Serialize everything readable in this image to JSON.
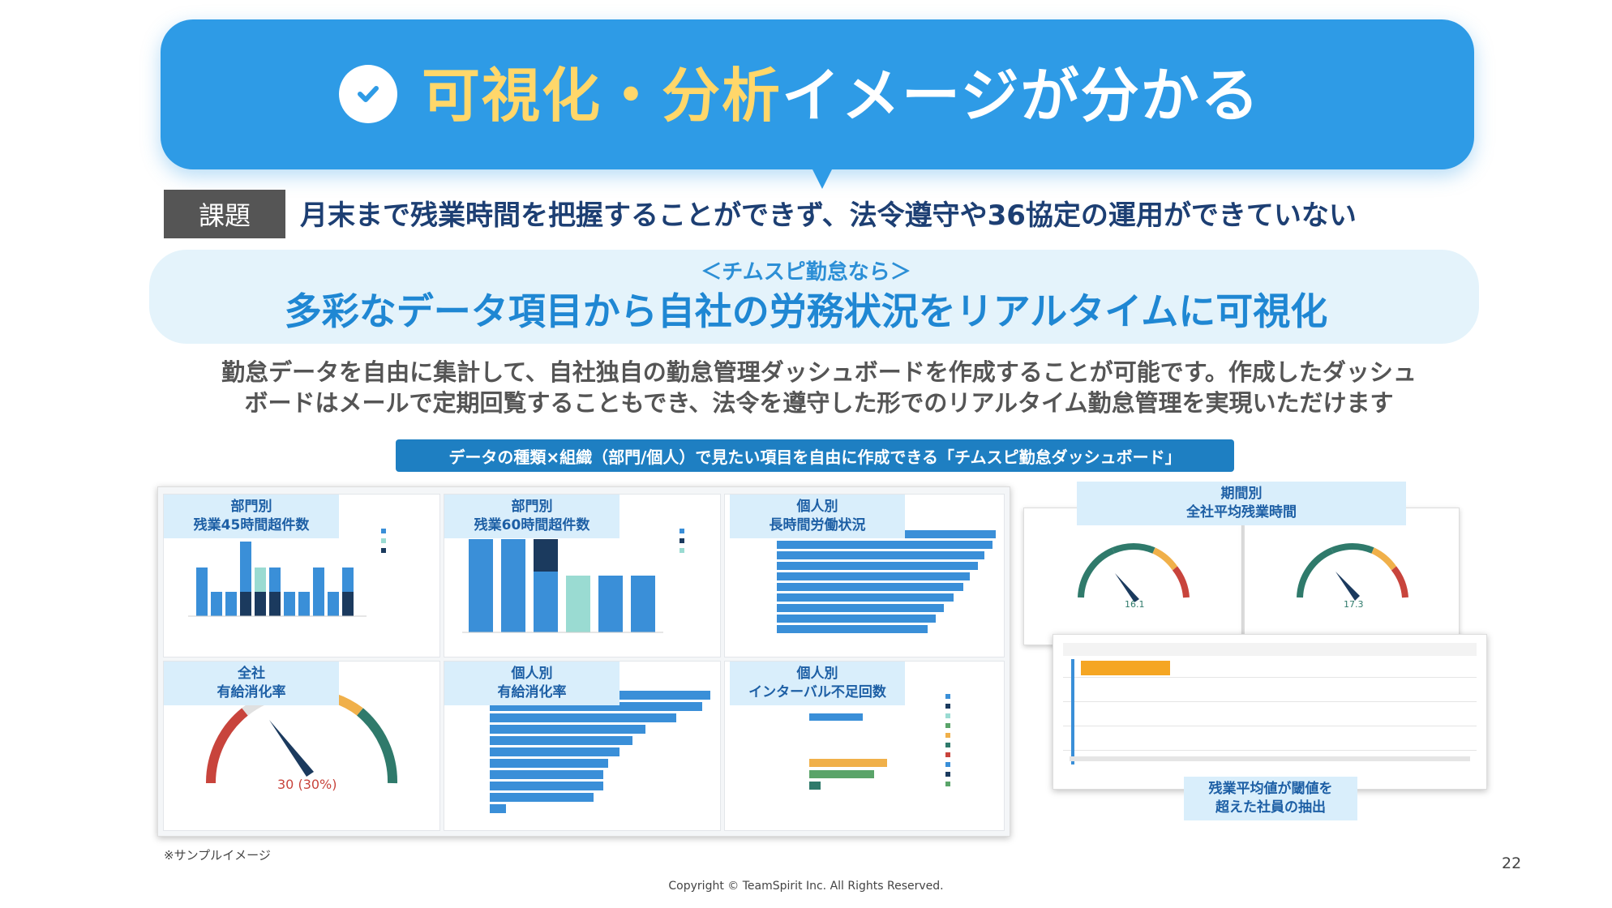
{
  "header": {
    "title_highlight": "可視化・分析",
    "title_rest": "イメージが分かる",
    "check_icon": "check-icon",
    "colors": {
      "banner": "#2e9be6",
      "highlight": "#ffd76a"
    }
  },
  "issue": {
    "tag": "課題",
    "text": "月末まで残業時間を把握することができず、法令遵守や36協定の運用ができていない"
  },
  "solution": {
    "subtitle": "＜チムスピ勤怠なら＞",
    "title": "多彩なデータ項目から自社の労務状況をリアルタイムに可視化"
  },
  "description": {
    "line1": "勤怠データを自由に集計して、自社独自の勤怠管理ダッシュボードを作成することが可能です。作成したダッシュ",
    "line2": "ボードはメールで定期回覧することもでき、法令を遵守した形でのリアルタイム勤怠管理を実現いただけます"
  },
  "caption_bar": "データの種類×組織（部門/個人）で見たい項目を自由に作成できる「チムスピ勤怠ダッシュボード」",
  "panels": [
    {
      "line1": "部門別",
      "line2": "残業45時間超件数"
    },
    {
      "line1": "部門別",
      "line2": "残業60時間超件数"
    },
    {
      "line1": "個人別",
      "line2": "長時間労働状況"
    },
    {
      "line1": "全社",
      "line2": "有給消化率"
    },
    {
      "line1": "個人別",
      "line2": "有給消化率"
    },
    {
      "line1": "個人別",
      "line2": "インターバル不足回数"
    }
  ],
  "right": {
    "period_label_1": "期間別",
    "period_label_2": "全社平均残業時間",
    "gauge1_value": "16.1",
    "gauge2_value": "17.3",
    "extract_label_1": "残業平均値が閾値を",
    "extract_label_2": "超えた社員の抽出"
  },
  "gauge_left_value": "30 (30%)",
  "sample_note": "※サンプルイメージ",
  "page_number": "22",
  "copyright": "Copyright © TeamSpirit Inc. All Rights Reserved."
}
